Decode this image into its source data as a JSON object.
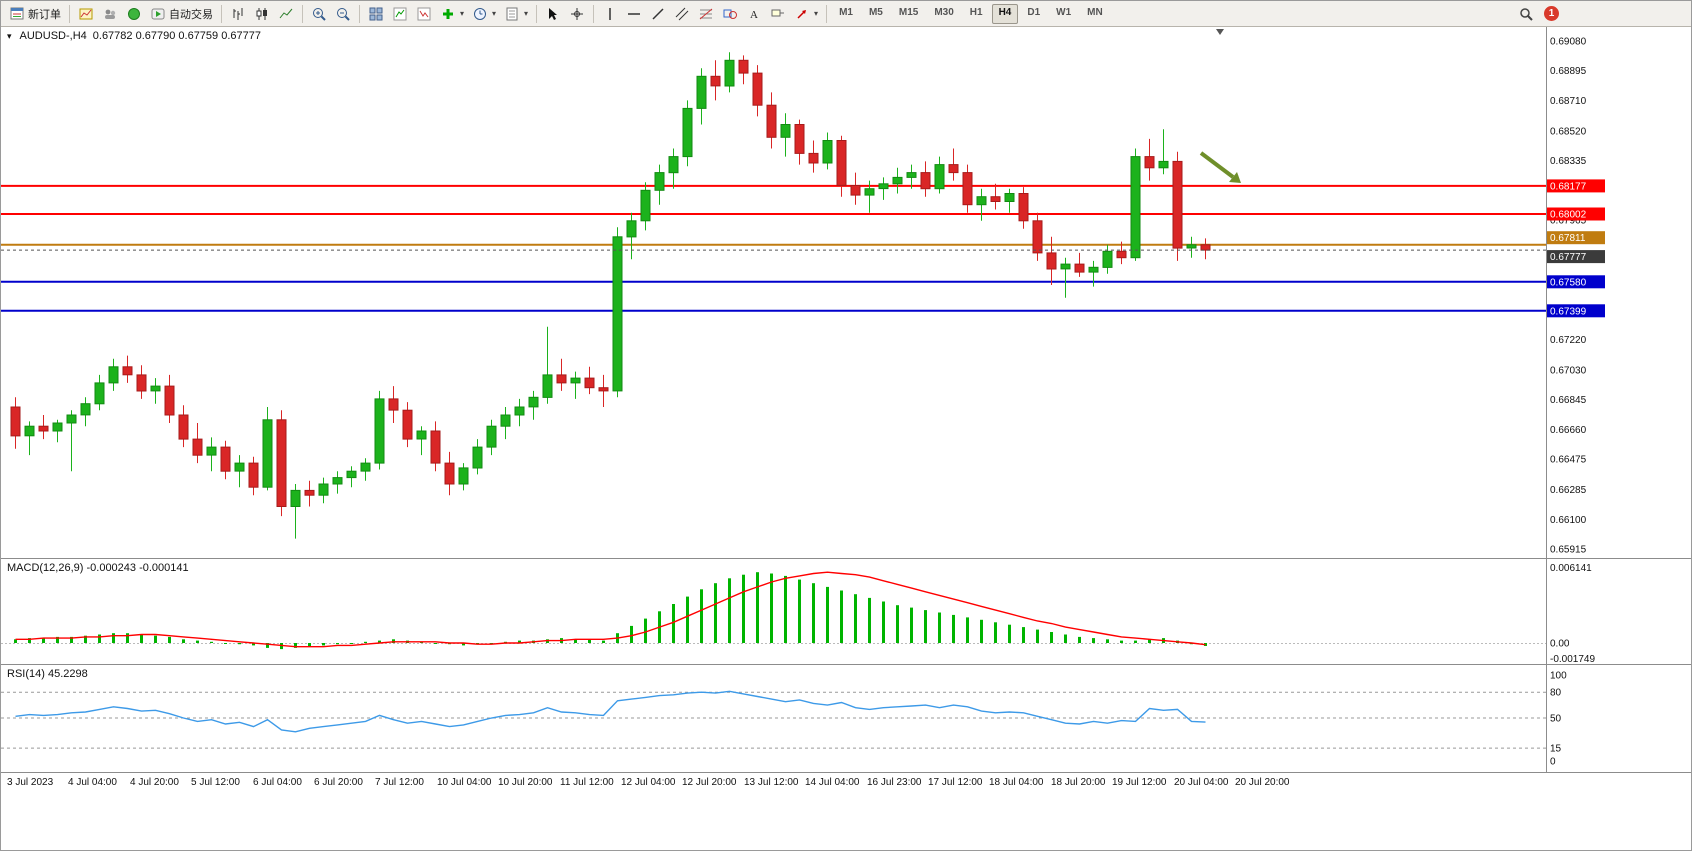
{
  "toolbar": {
    "new_order_label": "新订单",
    "autotrading_label": "自动交易",
    "notification_count": "1",
    "items": [
      {
        "name": "new-order-button",
        "icon": "new-order-icon",
        "label": "新订单"
      },
      {
        "sep": true
      },
      {
        "name": "new-chart-button",
        "icon": "new-chart-icon"
      },
      {
        "name": "profiles-button",
        "icon": "profiles-icon"
      },
      {
        "name": "market-watch-button",
        "icon": "market-watch-icon"
      },
      {
        "name": "autotrading-button",
        "icon": "autotrading-icon",
        "label": "自动交易"
      },
      {
        "sep": true
      },
      {
        "name": "bar-chart-button",
        "icon": "bar-chart-icon"
      },
      {
        "name": "candlestick-chart-button",
        "icon": "candlestick-chart-icon"
      },
      {
        "name": "line-chart-button",
        "icon": "line-chart-icon"
      },
      {
        "sep": true
      },
      {
        "name": "zoom-in-button",
        "icon": "zoom-in-icon"
      },
      {
        "name": "zoom-out-button",
        "icon": "zoom-out-icon"
      },
      {
        "sep": true
      },
      {
        "name": "tile-windows-button",
        "icon": "tile-windows-icon"
      },
      {
        "name": "indicators-button",
        "icon": "indicators-icon"
      },
      {
        "name": "objects-button",
        "icon": "objects-icon"
      },
      {
        "name": "add-indicator-button",
        "icon": "add-indicator-icon",
        "dropdown": true
      },
      {
        "name": "period-button",
        "icon": "period-icon",
        "dropdown": true
      },
      {
        "name": "templates-button",
        "icon": "templates-icon",
        "dropdown": true
      },
      {
        "sep": true
      },
      {
        "name": "cursor-button",
        "icon": "cursor-icon"
      },
      {
        "name": "crosshair-button",
        "icon": "crosshair-icon"
      },
      {
        "sep": true
      },
      {
        "name": "vertical-line-button",
        "icon": "vertical-line-icon"
      },
      {
        "name": "horizontal-line-button",
        "icon": "horizontal-line-icon"
      },
      {
        "name": "trendline-button",
        "icon": "trendline-icon"
      },
      {
        "name": "channel-button",
        "icon": "channel-icon"
      },
      {
        "name": "fibonacci-button",
        "icon": "fibonacci-icon"
      },
      {
        "name": "shapes-button",
        "icon": "shapes-icon"
      },
      {
        "name": "text-button",
        "icon": "text-icon"
      },
      {
        "name": "label-button",
        "icon": "label-icon"
      },
      {
        "name": "arrows-button",
        "icon": "arrows-icon",
        "dropdown": true
      },
      {
        "sep": true
      }
    ],
    "timeframes": [
      {
        "label": "M1",
        "active": false
      },
      {
        "label": "M5",
        "active": false
      },
      {
        "label": "M15",
        "active": false
      },
      {
        "label": "M30",
        "active": false
      },
      {
        "label": "H1",
        "active": false
      },
      {
        "label": "H4",
        "active": true
      },
      {
        "label": "D1",
        "active": false
      },
      {
        "label": "W1",
        "active": false
      },
      {
        "label": "MN",
        "active": false
      }
    ]
  },
  "chart": {
    "symbol_period": "AUDUSD-,H4",
    "ohlc": "0.67782 0.67790 0.67759 0.67777"
  },
  "macd": {
    "name": "MACD(12,26,9)",
    "values": "-0.000243 -0.000141"
  },
  "rsi": {
    "name": "RSI(14)",
    "value": "45.2298"
  },
  "current_price": {
    "value": 0.67777,
    "label": "0.67777",
    "badge_color": "#3b3b3b"
  },
  "price_axis": {
    "labels": [
      "0.69080",
      "0.68895",
      "0.68710",
      "0.68520",
      "0.68335",
      "0.67965",
      "0.67220",
      "0.67030",
      "0.66845",
      "0.66660",
      "0.66475",
      "0.66285",
      "0.66100",
      "0.65915"
    ]
  },
  "time_axis": {
    "labels": [
      "3 Jul 2023",
      "4 Jul 04:00",
      "4 Jul 20:00",
      "5 Jul 12:00",
      "6 Jul 04:00",
      "6 Jul 20:00",
      "7 Jul 12:00",
      "10 Jul 04:00",
      "10 Jul 20:00",
      "11 Jul 12:00",
      "12 Jul 04:00",
      "12 Jul 20:00",
      "13 Jul 12:00",
      "14 Jul 04:00",
      "16 Jul 23:00",
      "17 Jul 12:00",
      "18 Jul 04:00",
      "18 Jul 20:00",
      "19 Jul 12:00",
      "20 Jul 04:00",
      "20 Jul 20:00"
    ]
  },
  "colors": {
    "bull": "#1cb21c",
    "bear": "#d92626",
    "bull_edge": "#128a12",
    "bear_edge": "#a61b1b",
    "macd_hist": "#00b400",
    "macd_signal": "#ff0000",
    "rsi_line": "#3d9ae8",
    "arrow_green": "#6f8f2a"
  },
  "chart_data": [
    {
      "type": "candlestick",
      "symbol": "AUDUSD-",
      "timeframe": "H4",
      "ohlc_current": [
        0.67782,
        0.6779,
        0.67759,
        0.67777
      ],
      "ylim": [
        0.65915,
        0.6908
      ],
      "hlines": [
        {
          "price": 0.68177,
          "label": "0.68177",
          "color": "#ff0000",
          "badge_dy": 0
        },
        {
          "price": 0.68002,
          "label": "0.68002",
          "color": "#ff0000",
          "badge_dy": 0
        },
        {
          "price": 0.67811,
          "label": "0.67811",
          "color": "#c07c10",
          "badge_dy": -7
        },
        {
          "price": 0.6758,
          "label": "0.67580",
          "color": "#0000cc",
          "badge_dy": 0
        },
        {
          "price": 0.67399,
          "label": "0.67399",
          "color": "#0000cc",
          "badge_dy": 0
        }
      ],
      "candles": [
        [
          0.668,
          0.6686,
          0.6654,
          0.6662
        ],
        [
          0.6662,
          0.6671,
          0.665,
          0.6668
        ],
        [
          0.6668,
          0.6675,
          0.666,
          0.6665
        ],
        [
          0.6665,
          0.6672,
          0.6658,
          0.667
        ],
        [
          0.667,
          0.6678,
          0.664,
          0.6675
        ],
        [
          0.6675,
          0.6686,
          0.6668,
          0.6682
        ],
        [
          0.6682,
          0.67,
          0.6678,
          0.6695
        ],
        [
          0.6695,
          0.671,
          0.669,
          0.6705
        ],
        [
          0.6705,
          0.6712,
          0.6695,
          0.67
        ],
        [
          0.67,
          0.6706,
          0.6685,
          0.669
        ],
        [
          0.669,
          0.6698,
          0.6682,
          0.6693
        ],
        [
          0.6693,
          0.67,
          0.667,
          0.6675
        ],
        [
          0.6675,
          0.6681,
          0.6655,
          0.666
        ],
        [
          0.666,
          0.667,
          0.6645,
          0.665
        ],
        [
          0.665,
          0.6661,
          0.664,
          0.6655
        ],
        [
          0.6655,
          0.6659,
          0.6635,
          0.664
        ],
        [
          0.664,
          0.665,
          0.663,
          0.6645
        ],
        [
          0.6645,
          0.6649,
          0.6625,
          0.663
        ],
        [
          0.663,
          0.668,
          0.6628,
          0.6672
        ],
        [
          0.6672,
          0.6678,
          0.6612,
          0.6618
        ],
        [
          0.6618,
          0.6632,
          0.6598,
          0.6628
        ],
        [
          0.6628,
          0.6634,
          0.6618,
          0.6625
        ],
        [
          0.6625,
          0.6636,
          0.662,
          0.6632
        ],
        [
          0.6632,
          0.664,
          0.6626,
          0.6636
        ],
        [
          0.6636,
          0.6643,
          0.663,
          0.664
        ],
        [
          0.664,
          0.6648,
          0.6634,
          0.6645
        ],
        [
          0.6645,
          0.669,
          0.6641,
          0.6685
        ],
        [
          0.6685,
          0.6693,
          0.667,
          0.6678
        ],
        [
          0.6678,
          0.6683,
          0.6655,
          0.666
        ],
        [
          0.666,
          0.6668,
          0.665,
          0.6665
        ],
        [
          0.6665,
          0.6671,
          0.664,
          0.6645
        ],
        [
          0.6645,
          0.6652,
          0.6625,
          0.6632
        ],
        [
          0.6632,
          0.6645,
          0.6628,
          0.6642
        ],
        [
          0.6642,
          0.666,
          0.6638,
          0.6655
        ],
        [
          0.6655,
          0.6672,
          0.665,
          0.6668
        ],
        [
          0.6668,
          0.668,
          0.666,
          0.6675
        ],
        [
          0.6675,
          0.6685,
          0.6668,
          0.668
        ],
        [
          0.668,
          0.669,
          0.6672,
          0.6686
        ],
        [
          0.6686,
          0.673,
          0.6682,
          0.67
        ],
        [
          0.67,
          0.671,
          0.669,
          0.6695
        ],
        [
          0.6695,
          0.6702,
          0.6685,
          0.6698
        ],
        [
          0.6698,
          0.6705,
          0.6688,
          0.6692
        ],
        [
          0.6692,
          0.67,
          0.668,
          0.669
        ],
        [
          0.669,
          0.6792,
          0.6686,
          0.6786
        ],
        [
          0.6786,
          0.6801,
          0.6772,
          0.6796
        ],
        [
          0.6796,
          0.682,
          0.679,
          0.6815
        ],
        [
          0.6815,
          0.6831,
          0.6806,
          0.6826
        ],
        [
          0.6826,
          0.6841,
          0.6816,
          0.6836
        ],
        [
          0.6836,
          0.6871,
          0.683,
          0.6866
        ],
        [
          0.6866,
          0.6891,
          0.6856,
          0.6886
        ],
        [
          0.6886,
          0.6896,
          0.6871,
          0.688
        ],
        [
          0.688,
          0.6901,
          0.6876,
          0.6896
        ],
        [
          0.6896,
          0.6899,
          0.6881,
          0.6888
        ],
        [
          0.6888,
          0.6893,
          0.6861,
          0.6868
        ],
        [
          0.6868,
          0.6876,
          0.6841,
          0.6848
        ],
        [
          0.6848,
          0.6863,
          0.6836,
          0.6856
        ],
        [
          0.6856,
          0.6859,
          0.6831,
          0.6838
        ],
        [
          0.6838,
          0.6846,
          0.6826,
          0.6832
        ],
        [
          0.6832,
          0.6851,
          0.6828,
          0.6846
        ],
        [
          0.6846,
          0.6849,
          0.6811,
          0.6818
        ],
        [
          0.6818,
          0.6826,
          0.6806,
          0.6812
        ],
        [
          0.6812,
          0.6821,
          0.6801,
          0.6816
        ],
        [
          0.6816,
          0.6823,
          0.6809,
          0.6819
        ],
        [
          0.6819,
          0.6829,
          0.6813,
          0.6823
        ],
        [
          0.6823,
          0.6831,
          0.6816,
          0.6826
        ],
        [
          0.6826,
          0.6833,
          0.6811,
          0.6816
        ],
        [
          0.6816,
          0.6836,
          0.6813,
          0.6831
        ],
        [
          0.6831,
          0.6841,
          0.6821,
          0.6826
        ],
        [
          0.6826,
          0.6831,
          0.6801,
          0.6806
        ],
        [
          0.6806,
          0.6816,
          0.6796,
          0.6811
        ],
        [
          0.6811,
          0.6819,
          0.6803,
          0.6808
        ],
        [
          0.6808,
          0.6816,
          0.6801,
          0.6813
        ],
        [
          0.6813,
          0.6817,
          0.6791,
          0.6796
        ],
        [
          0.6796,
          0.6801,
          0.6771,
          0.6776
        ],
        [
          0.6776,
          0.6786,
          0.6756,
          0.6766
        ],
        [
          0.6766,
          0.6773,
          0.6748,
          0.6769
        ],
        [
          0.6769,
          0.6776,
          0.6761,
          0.6764
        ],
        [
          0.6764,
          0.6771,
          0.6755,
          0.6767
        ],
        [
          0.6767,
          0.6781,
          0.6763,
          0.6777
        ],
        [
          0.6777,
          0.6783,
          0.6769,
          0.6773
        ],
        [
          0.6773,
          0.6841,
          0.6771,
          0.6836
        ],
        [
          0.6836,
          0.6847,
          0.6821,
          0.6829
        ],
        [
          0.6829,
          0.6853,
          0.6825,
          0.6833
        ],
        [
          0.6833,
          0.6839,
          0.6771,
          0.6779
        ],
        [
          0.6779,
          0.6786,
          0.6773,
          0.6781
        ],
        [
          0.6781,
          0.6785,
          0.6772,
          0.67777
        ]
      ]
    },
    {
      "type": "bar",
      "title": "MACD(12,26,9)",
      "params": [
        12,
        26,
        9
      ],
      "current": [
        -0.000243,
        -0.000141
      ],
      "ylim": [
        -0.001749,
        0.006141
      ],
      "axis_labels": [
        "0.006141",
        "0.00",
        "-0.001749"
      ],
      "values": [
        0.0003,
        0.0004,
        0.0004,
        0.0005,
        0.0005,
        0.0006,
        0.0007,
        0.0008,
        0.0008,
        0.0007,
        0.0006,
        0.0005,
        0.0003,
        0.0002,
        0.0001,
        0.0,
        -0.0001,
        -0.0002,
        -0.0004,
        -0.0005,
        -0.0004,
        -0.0003,
        -0.0002,
        -0.0001,
        0.0,
        0.0001,
        0.0002,
        0.0003,
        0.0002,
        0.0001,
        0.0,
        -0.0001,
        -0.0002,
        -0.0001,
        0.0,
        0.0001,
        0.0002,
        0.0002,
        0.0003,
        0.0004,
        0.0003,
        0.0003,
        0.0002,
        0.0008,
        0.0014,
        0.002,
        0.0026,
        0.0032,
        0.0038,
        0.0044,
        0.0049,
        0.0053,
        0.0056,
        0.0058,
        0.0057,
        0.0055,
        0.0052,
        0.0049,
        0.0046,
        0.0043,
        0.004,
        0.0037,
        0.0034,
        0.0031,
        0.0029,
        0.0027,
        0.0025,
        0.0023,
        0.0021,
        0.0019,
        0.0017,
        0.0015,
        0.0013,
        0.0011,
        0.0009,
        0.0007,
        0.0005,
        0.0004,
        0.0003,
        0.0002,
        0.0002,
        0.0003,
        0.0004,
        0.0002,
        -0.0001,
        -0.000243
      ],
      "series": [
        {
          "name": "signal",
          "values": [
            0.0003,
            0.0003,
            0.0004,
            0.0004,
            0.0004,
            0.0005,
            0.0005,
            0.0006,
            0.0006,
            0.0007,
            0.0007,
            0.0006,
            0.0005,
            0.0004,
            0.0003,
            0.0002,
            0.0001,
            0.0,
            -0.0001,
            -0.0002,
            -0.0003,
            -0.0003,
            -0.0003,
            -0.0002,
            -0.0002,
            -0.0001,
            0.0,
            0.0001,
            0.0001,
            0.0001,
            0.0001,
            0.0,
            0.0,
            -0.0001,
            -0.0001,
            0.0,
            0.0,
            0.0001,
            0.0002,
            0.0002,
            0.0003,
            0.0003,
            0.0003,
            0.0004,
            0.0006,
            0.0009,
            0.0013,
            0.0017,
            0.0022,
            0.0027,
            0.0032,
            0.0037,
            0.0042,
            0.0046,
            0.005,
            0.0053,
            0.0055,
            0.0057,
            0.0058,
            0.0057,
            0.0056,
            0.0054,
            0.0051,
            0.0048,
            0.0045,
            0.0042,
            0.0039,
            0.0036,
            0.0033,
            0.003,
            0.0027,
            0.0024,
            0.0021,
            0.0018,
            0.0016,
            0.0013,
            0.0011,
            0.0009,
            0.0007,
            0.0005,
            0.0004,
            0.0003,
            0.0002,
            0.0001,
            0.0,
            -0.000141
          ]
        }
      ]
    },
    {
      "type": "line",
      "title": "RSI(14)",
      "current": 45.2298,
      "ylim": [
        0,
        100
      ],
      "levels": [
        80,
        50,
        15
      ],
      "axis_labels": [
        "100",
        "80",
        "50",
        "15",
        "0"
      ],
      "values": [
        52,
        54,
        53,
        54,
        56,
        57,
        60,
        63,
        61,
        58,
        59,
        55,
        50,
        46,
        48,
        43,
        45,
        40,
        48,
        36,
        34,
        38,
        40,
        42,
        44,
        46,
        53,
        48,
        44,
        46,
        43,
        40,
        42,
        46,
        50,
        53,
        54,
        56,
        62,
        57,
        56,
        54,
        53,
        70,
        72,
        74,
        76,
        77,
        79,
        80,
        79,
        81,
        78,
        75,
        72,
        69,
        71,
        67,
        65,
        68,
        62,
        60,
        62,
        63,
        64,
        65,
        62,
        65,
        63,
        58,
        56,
        57,
        56,
        52,
        48,
        44,
        43,
        46,
        44,
        47,
        46,
        61,
        59,
        60,
        46,
        45.2298
      ]
    }
  ]
}
